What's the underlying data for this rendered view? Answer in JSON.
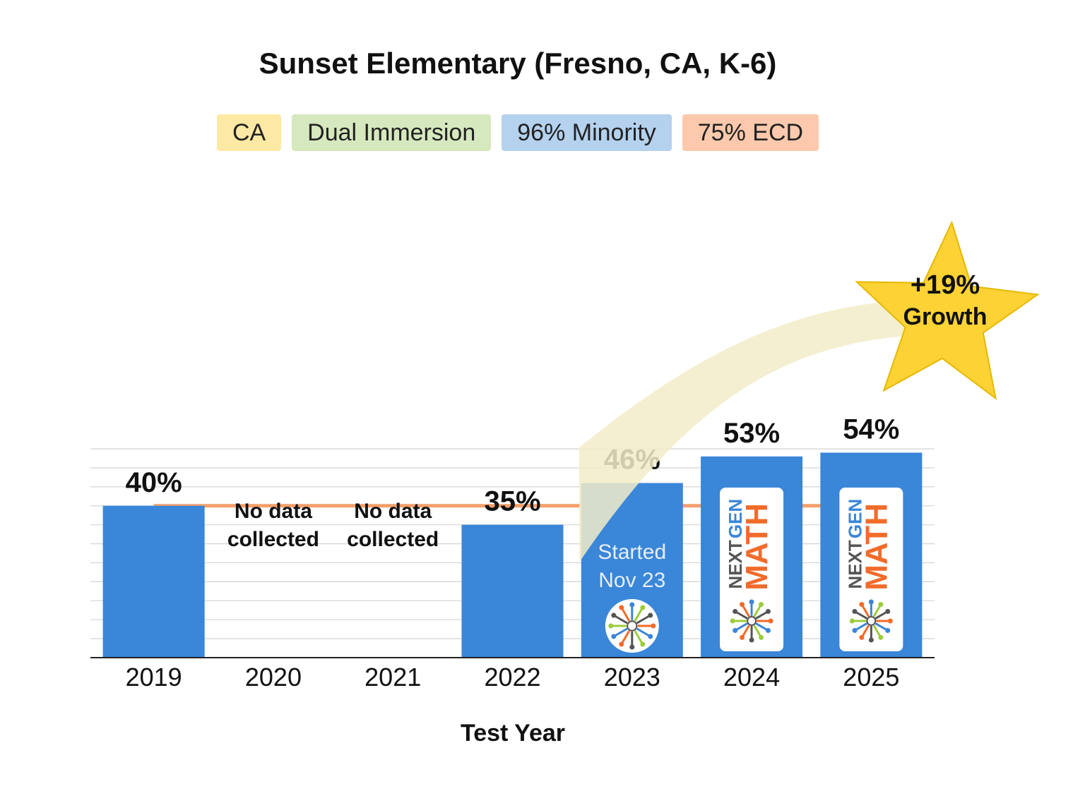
{
  "tags": [
    {
      "label": "CA",
      "color": "#fde9a4"
    },
    {
      "label": "Dual Immersion",
      "color": "#d6e8be"
    },
    {
      "label": "96% Minority",
      "color": "#b4d1ee"
    },
    {
      "label": "75% ECD",
      "color": "#fcc9ad"
    }
  ],
  "chart_data": {
    "type": "bar",
    "title": "Sunset Elementary (Fresno, CA, K-6)",
    "xlabel": "Test Year",
    "ylabel": "",
    "ylim": [
      0,
      55
    ],
    "grid": true,
    "categories": [
      "2019",
      "2020",
      "2021",
      "2022",
      "2023",
      "2024",
      "2025"
    ],
    "values": [
      40,
      null,
      null,
      35,
      46,
      53,
      54
    ],
    "data_labels": [
      "40%",
      "",
      "",
      "35%",
      "46%",
      "53%",
      "54%"
    ],
    "no_data_label": [
      "No data",
      "collected"
    ],
    "reference_line": {
      "value": 40,
      "color": "#f4a06a"
    },
    "bar_color": "#3a86d8",
    "annotations": {
      "started": [
        "Started",
        "Nov 23"
      ],
      "star": [
        "+19%",
        "Growth"
      ],
      "star_color": "#fdd235",
      "logo_text": [
        "NEXT",
        "GEN",
        "MATH"
      ],
      "logo_colors": [
        "#555555",
        "#3a86d8",
        "#f26b2a"
      ]
    }
  }
}
